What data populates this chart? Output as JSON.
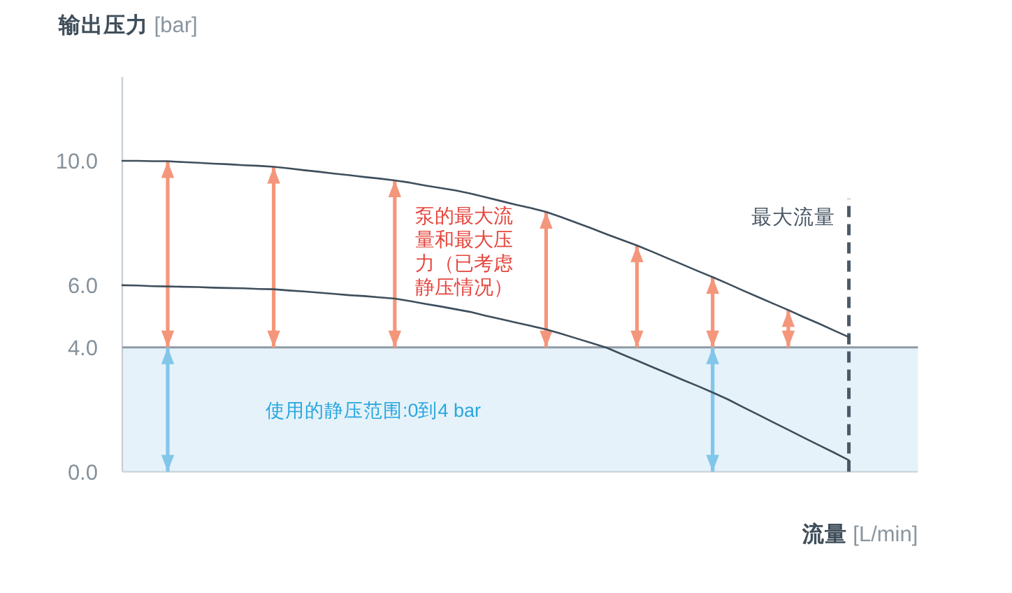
{
  "chart_data": {
    "type": "line",
    "ylabel": "**输出压力** [bar]",
    "xlabel": "**流量** [L/min]",
    "categories": [
      null,
      null,
      null,
      null,
      null,
      null,
      null,
      null,
      null,
      null,
      null,
      null,
      null,
      null,
      null,
      null,
      null,
      null,
      null,
      null,
      null,
      null,
      null,
      null,
      null,
      null,
      null,
      null,
      null,
      null,
      null,
      null,
      null,
      null,
      null,
      null,
      null,
      null,
      null,
      null,
      null,
      null,
      null,
      null,
      null,
      null,
      null,
      null,
      null
    ],
    "series": [
      {
        "color": "#3d4e5c",
        "values": [
          10.0,
          10.0,
          9.99,
          9.99,
          9.96,
          9.94,
          9.91,
          9.89,
          9.86,
          9.84,
          9.81,
          9.76,
          9.7,
          9.65,
          9.59,
          9.54,
          9.48,
          9.43,
          9.37,
          9.3,
          9.21,
          9.13,
          9.05,
          8.95,
          8.83,
          8.71,
          8.59,
          8.48,
          8.36,
          8.19,
          8.01,
          7.83,
          7.64,
          7.46,
          7.28,
          7.08,
          6.87,
          6.67,
          6.46,
          6.26,
          6.05,
          5.83,
          5.62,
          5.41,
          5.2,
          4.98,
          4.77,
          4.55,
          4.33
        ]
      },
      {
        "color": "#3d4e5c",
        "values": [
          6.0,
          5.99,
          5.97,
          5.96,
          5.95,
          5.94,
          5.92,
          5.91,
          5.9,
          5.88,
          5.87,
          5.83,
          5.8,
          5.76,
          5.72,
          5.68,
          5.65,
          5.61,
          5.57,
          5.49,
          5.4,
          5.32,
          5.23,
          5.14,
          5.02,
          4.91,
          4.8,
          4.69,
          4.58,
          4.44,
          4.29,
          4.14,
          3.99,
          3.78,
          3.58,
          3.37,
          3.17,
          2.96,
          2.76,
          2.55,
          2.33,
          2.08,
          1.84,
          1.59,
          1.35,
          1.1,
          0.86,
          0.62,
          0.37
        ]
      },
      {
        "type": "bar",
        "color": "#f4967b",
        "values": [
          null,
          null,
          null,
          5.99,
          null,
          null,
          null,
          null,
          null,
          null,
          5.81,
          null,
          null,
          null,
          null,
          null,
          null,
          null,
          5.37,
          null,
          null,
          null,
          null,
          null,
          null,
          null,
          null,
          null,
          4.36,
          null,
          null,
          null,
          null,
          null,
          3.28,
          null,
          null,
          null,
          null,
          2.26,
          null,
          null,
          null,
          null,
          1.2,
          null,
          null,
          null,
          null
        ],
        "base": [
          null,
          null,
          null,
          4,
          null,
          null,
          null,
          null,
          null,
          null,
          4,
          null,
          null,
          null,
          null,
          null,
          null,
          null,
          4,
          null,
          null,
          null,
          null,
          null,
          null,
          null,
          null,
          null,
          4,
          null,
          null,
          null,
          null,
          null,
          4,
          null,
          null,
          null,
          null,
          4,
          null,
          null,
          null,
          null,
          4,
          null,
          null,
          null,
          null
        ]
      },
      {
        "type": "bar",
        "color": "#82c6ea",
        "values": [
          null,
          null,
          null,
          4,
          null,
          null,
          null,
          null,
          null,
          null,
          null,
          null,
          null,
          null,
          null,
          null,
          null,
          null,
          null,
          null,
          null,
          null,
          null,
          null,
          null,
          null,
          null,
          null,
          null,
          null,
          null,
          null,
          null,
          null,
          null,
          null,
          null,
          null,
          null,
          4,
          null,
          null,
          null,
          null,
          null,
          null,
          null,
          null,
          null
        ],
        "base": [
          null,
          null,
          null,
          0,
          null,
          null,
          null,
          null,
          null,
          null,
          null,
          null,
          null,
          null,
          null,
          null,
          null,
          null,
          null,
          null,
          null,
          null,
          null,
          null,
          null,
          null,
          null,
          null,
          null,
          null,
          null,
          null,
          null,
          null,
          null,
          null,
          null,
          null,
          null,
          0,
          null,
          null,
          null,
          null,
          null,
          null,
          null,
          null,
          null
        ]
      }
    ],
    "ylim": [
      0,
      12.7
    ],
    "yticks": [
      {
        "value": 0,
        "label": "0.0"
      },
      {
        "value": 4,
        "label": "4.0"
      },
      {
        "value": 6,
        "label": "6.0"
      },
      {
        "value": 10,
        "label": "10.0"
      }
    ],
    "tick_labels": "y",
    "bands": [
      {
        "axis": "y",
        "from": 0,
        "to": 4,
        "label": "使用的静压范围:0到4 bar",
        "color": "#e5f2fa"
      }
    ],
    "ref_lines": [
      {
        "axis": "y",
        "value": 4,
        "color": "#8e9ba5"
      }
    ],
    "annotations": [
      "泵的最大流量和最大压力（已考虑静压情况）",
      "最大流量"
    ]
  }
}
